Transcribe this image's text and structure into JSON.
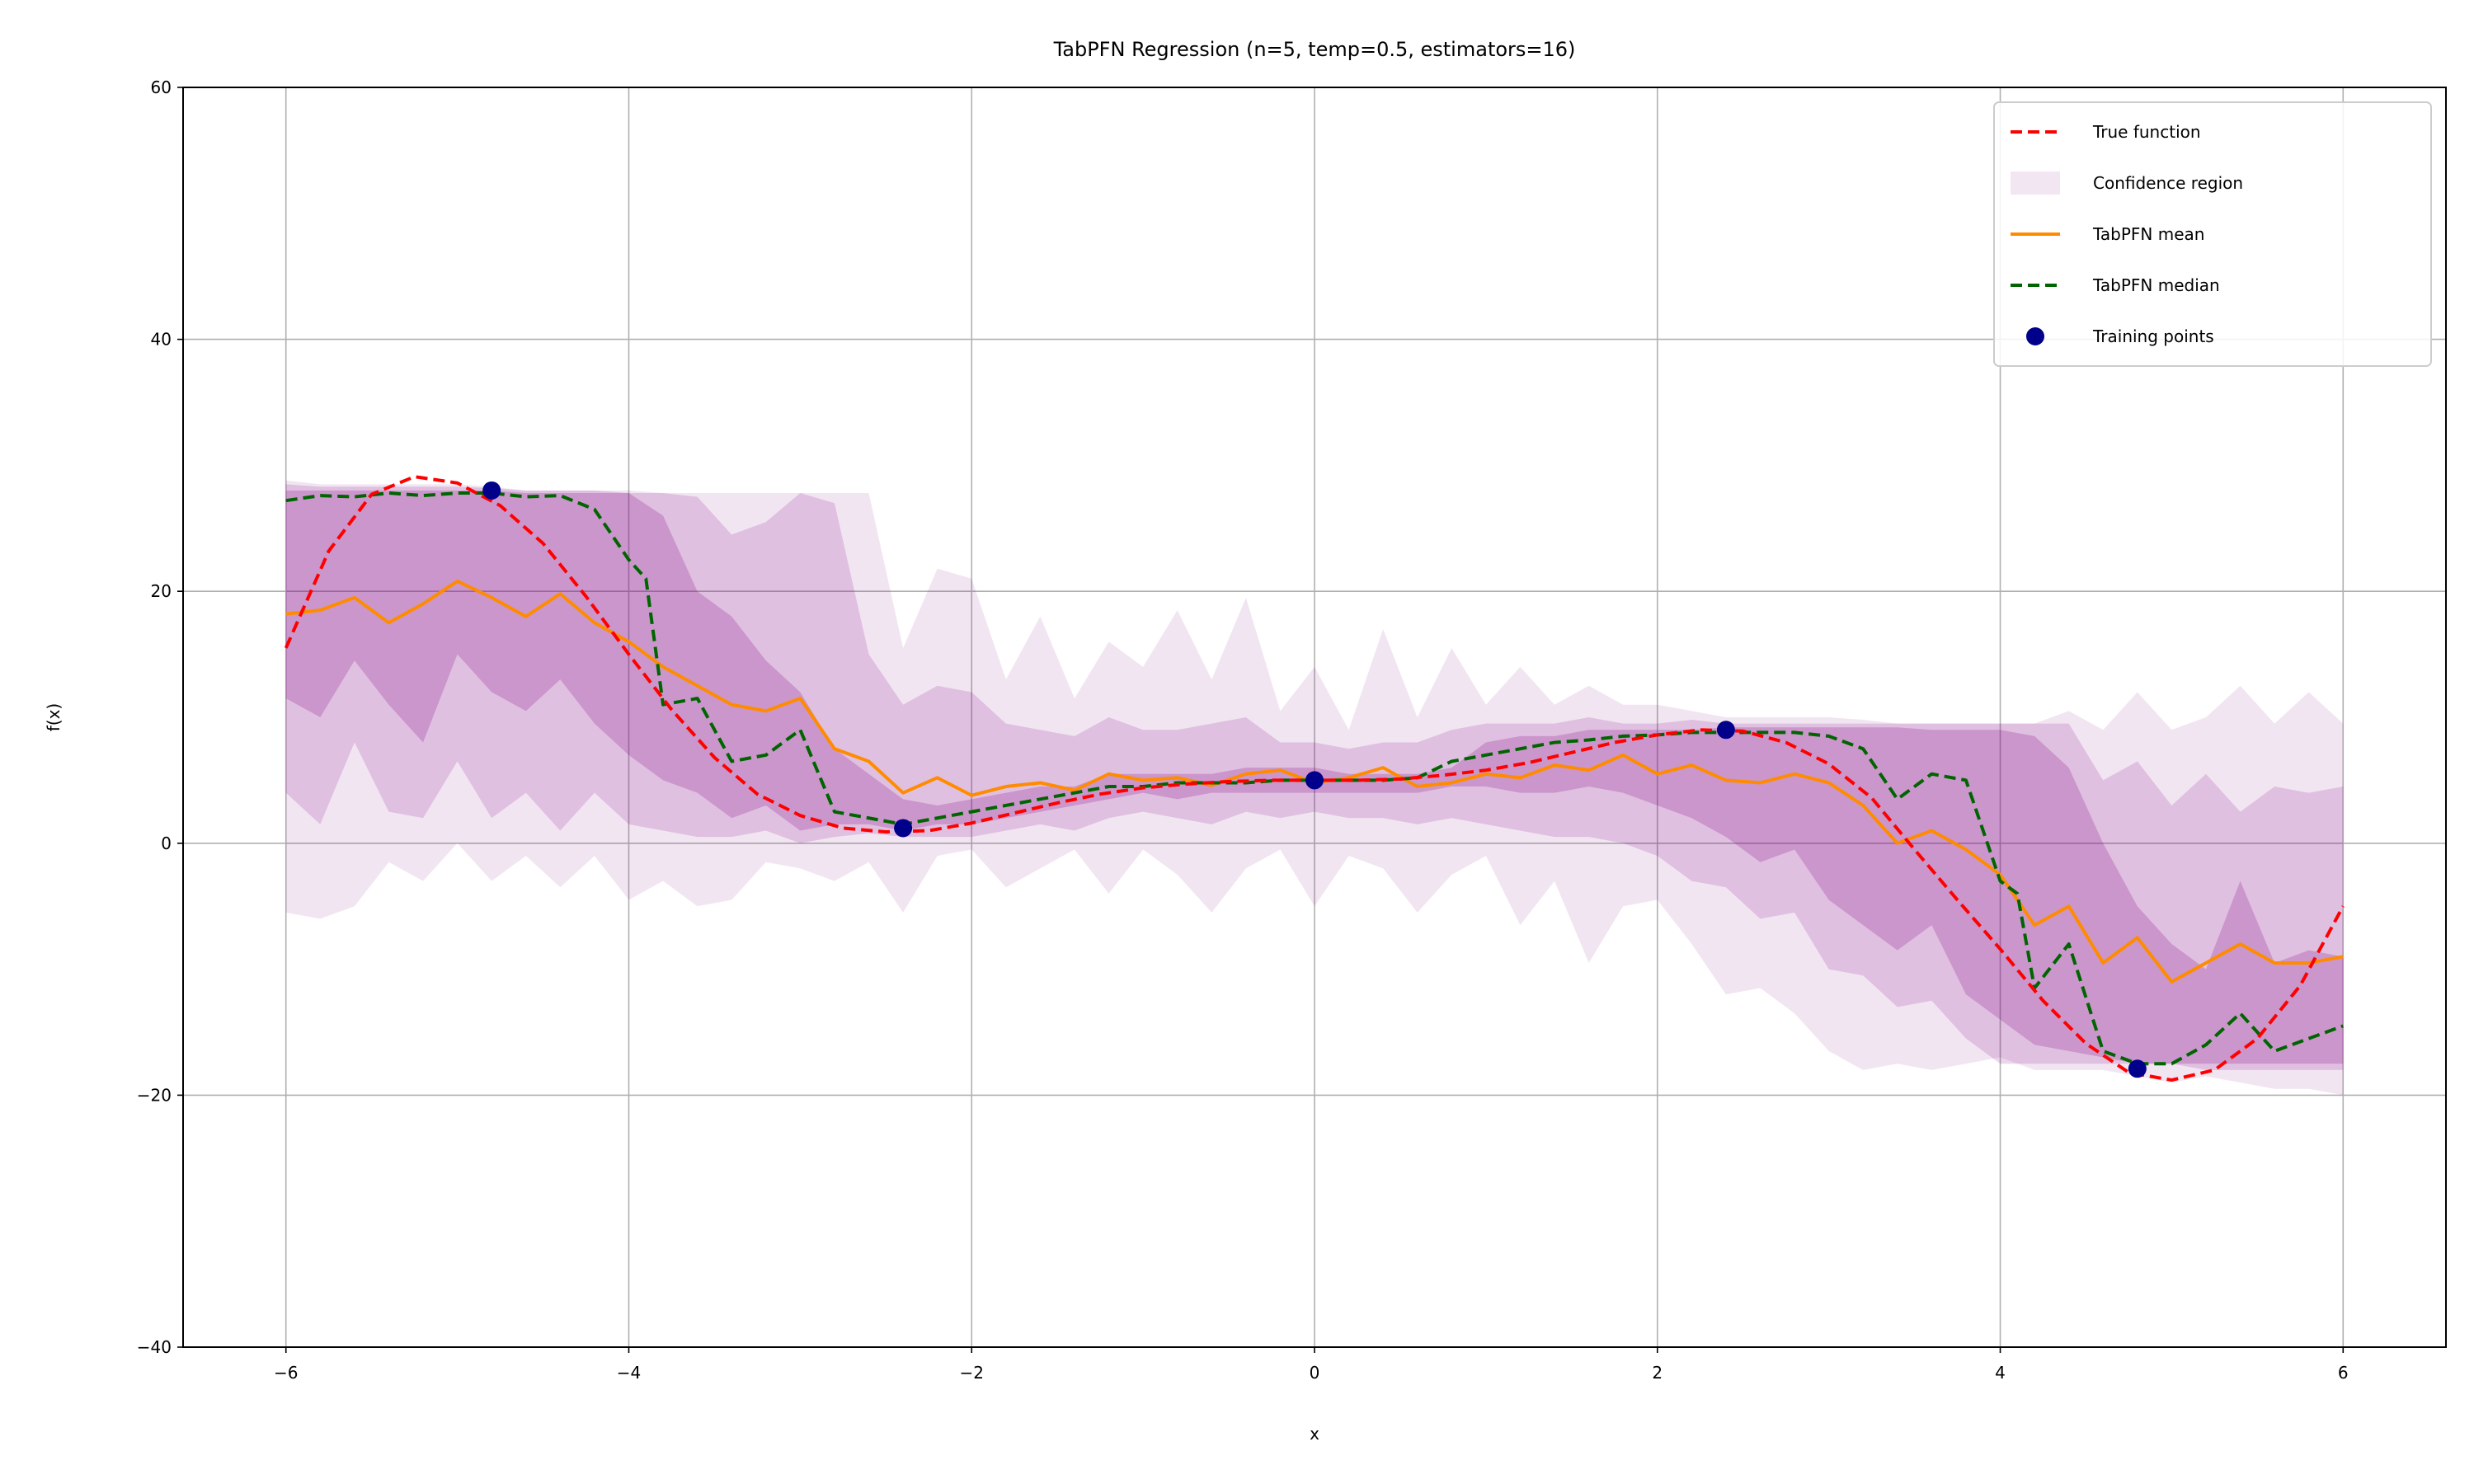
{
  "chart_data": {
    "type": "line",
    "title": "TabPFN Regression (n=5, temp=0.5, estimators=16)",
    "xlabel": "x",
    "ylabel": "f(x)",
    "xlim": [
      -6.6,
      6.6
    ],
    "ylim": [
      -40,
      60
    ],
    "xticks": [
      -6,
      -4,
      -2,
      0,
      2,
      4,
      6
    ],
    "xtick_labels": [
      "−6",
      "−4",
      "−2",
      "0",
      "2",
      "4",
      "6"
    ],
    "yticks": [
      -40,
      -20,
      0,
      20,
      40,
      60
    ],
    "ytick_labels": [
      "−40",
      "−20",
      "0",
      "20",
      "40",
      "60"
    ],
    "grid": true,
    "legend_position": "top-right",
    "legend": [
      {
        "label": "True function",
        "kind": "dashed-line",
        "color": "#ff0000"
      },
      {
        "label": "Confidence region",
        "kind": "patch",
        "color": "#f3e6f3"
      },
      {
        "label": "TabPFN mean",
        "kind": "line",
        "color": "#ff8c00"
      },
      {
        "label": "TabPFN median",
        "kind": "dashed-line",
        "color": "#006400"
      },
      {
        "label": "Training points",
        "kind": "marker",
        "color": "#00008b"
      }
    ],
    "colors": {
      "true_function": "#ff0000",
      "mean": "#ff8c00",
      "median": "#006400",
      "points": "#00008b",
      "band": "#800080"
    },
    "training_points": {
      "x": [
        -4.8,
        -2.4,
        0,
        2.4,
        4.8
      ],
      "y": [
        28,
        1.2,
        5,
        9,
        -17.9
      ]
    },
    "true_function_samples": {
      "x": [
        -6,
        -5.75,
        -5.5,
        -5.25,
        -5,
        -4.75,
        -4.5,
        -4.25,
        -4,
        -3.75,
        -3.5,
        -3.25,
        -3,
        -2.75,
        -2.5,
        -2.25,
        -2,
        -1.75,
        -1.5,
        -1.25,
        -1,
        -0.75,
        -0.5,
        -0.25,
        0,
        0.25,
        0.5,
        0.75,
        1,
        1.25,
        1.5,
        1.75,
        2,
        2.25,
        2.5,
        2.75,
        3,
        3.25,
        3.5,
        3.75,
        4,
        4.25,
        4.5,
        4.75,
        5,
        5.25,
        5.5,
        5.75,
        6
      ],
      "y": [
        15.5,
        23.2,
        27.7,
        29.1,
        28.6,
        26.8,
        23.8,
        19.6,
        15.0,
        10.6,
        6.8,
        3.9,
        2.2,
        1.2,
        0.9,
        1.0,
        1.6,
        2.4,
        3.2,
        3.9,
        4.4,
        4.7,
        4.9,
        5.0,
        5.0,
        5.0,
        5.1,
        5.4,
        5.8,
        6.4,
        7.2,
        8.0,
        8.6,
        9.0,
        8.9,
        8.0,
        6.3,
        3.6,
        -0.5,
        -4.5,
        -8.4,
        -12.5,
        -15.9,
        -18.2,
        -18.8,
        -18.0,
        -15.5,
        -11.3,
        -5.0
      ]
    },
    "series": [
      {
        "name": "TabPFN mean",
        "x": [
          -6,
          -5.8,
          -5.6,
          -5.4,
          -5.2,
          -5,
          -4.8,
          -4.6,
          -4.4,
          -4.2,
          -4,
          -3.8,
          -3.6,
          -3.4,
          -3.2,
          -3,
          -2.8,
          -2.6,
          -2.4,
          -2.2,
          -2,
          -1.8,
          -1.6,
          -1.4,
          -1.2,
          -1,
          -0.8,
          -0.6,
          -0.4,
          -0.2,
          0,
          0.2,
          0.4,
          0.6,
          0.8,
          1,
          1.2,
          1.4,
          1.6,
          1.8,
          2,
          2.2,
          2.4,
          2.6,
          2.8,
          3,
          3.2,
          3.4,
          3.6,
          3.8,
          4,
          4.2,
          4.4,
          4.6,
          4.8,
          5,
          5.2,
          5.4,
          5.6,
          5.8,
          6
        ],
        "y": [
          18.2,
          18.5,
          19.5,
          17.5,
          19.0,
          20.8,
          19.5,
          18.0,
          19.8,
          17.5,
          16.0,
          14.0,
          12.5,
          11.0,
          10.5,
          11.5,
          7.5,
          6.5,
          4.0,
          5.2,
          3.8,
          4.5,
          4.8,
          4.2,
          5.5,
          5.0,
          5.2,
          4.6,
          5.5,
          5.8,
          4.8,
          5.2,
          6.0,
          4.5,
          4.8,
          5.5,
          5.2,
          6.2,
          5.8,
          7.0,
          5.5,
          6.2,
          5.0,
          4.8,
          5.5,
          4.8,
          3.0,
          0.0,
          1.0,
          -0.5,
          -2.5,
          -6.5,
          -5.0,
          -9.5,
          -7.5,
          -11.0,
          -9.5,
          -8.0,
          -9.5,
          -9.5,
          -9.0
        ]
      },
      {
        "name": "TabPFN median",
        "x": [
          -6,
          -5.8,
          -5.6,
          -5.4,
          -5.2,
          -5,
          -4.8,
          -4.6,
          -4.4,
          -4.2,
          -4,
          -3.9,
          -3.8,
          -3.6,
          -3.4,
          -3.2,
          -3,
          -2.8,
          -2.6,
          -2.4,
          -2.2,
          -2,
          -1.8,
          -1.6,
          -1.4,
          -1.2,
          -1,
          -0.8,
          -0.6,
          -0.4,
          -0.2,
          0,
          0.2,
          0.4,
          0.6,
          0.8,
          1,
          1.2,
          1.4,
          1.6,
          1.8,
          2,
          2.2,
          2.4,
          2.6,
          2.8,
          3,
          3.2,
          3.4,
          3.6,
          3.8,
          4,
          4.1,
          4.2,
          4.4,
          4.6,
          4.8,
          5,
          5.2,
          5.4,
          5.6,
          5.8,
          6
        ],
        "y": [
          27.2,
          27.6,
          27.5,
          27.8,
          27.6,
          27.8,
          27.8,
          27.5,
          27.6,
          26.5,
          22.5,
          21.0,
          11.0,
          11.5,
          6.5,
          7.0,
          9.0,
          2.5,
          2.0,
          1.5,
          2.0,
          2.5,
          3.0,
          3.5,
          4.0,
          4.5,
          4.5,
          4.8,
          4.8,
          4.8,
          5.0,
          5.0,
          5.0,
          5.0,
          5.2,
          6.5,
          7.0,
          7.5,
          8.0,
          8.2,
          8.5,
          8.6,
          8.8,
          8.8,
          8.8,
          8.8,
          8.5,
          7.5,
          3.5,
          5.5,
          5.0,
          -3.0,
          -4.0,
          -11.5,
          -8.0,
          -16.5,
          -17.5,
          -17.5,
          -16.0,
          -13.5,
          -16.5,
          -15.5,
          -14.5
        ]
      }
    ],
    "confidence_bands": [
      {
        "level": "outer",
        "x": [
          -6,
          -5.8,
          -5.6,
          -5.4,
          -5.2,
          -5,
          -4.8,
          -4.6,
          -4.4,
          -4.2,
          -4,
          -3.8,
          -3.6,
          -3.4,
          -3.2,
          -3,
          -2.8,
          -2.6,
          -2.4,
          -2.2,
          -2,
          -1.8,
          -1.6,
          -1.4,
          -1.2,
          -1,
          -0.8,
          -0.6,
          -0.4,
          -0.2,
          0,
          0.2,
          0.4,
          0.6,
          0.8,
          1,
          1.2,
          1.4,
          1.6,
          1.8,
          2,
          2.2,
          2.4,
          2.6,
          2.8,
          3,
          3.2,
          3.4,
          3.6,
          3.8,
          4,
          4.2,
          4.4,
          4.6,
          4.8,
          5,
          5.2,
          5.4,
          5.6,
          5.8,
          6
        ],
        "lower": [
          -5.5,
          -6.0,
          -5.0,
          -1.5,
          -3.0,
          0.0,
          -3.0,
          -1.0,
          -3.5,
          -1.0,
          -4.5,
          -3.0,
          -5.0,
          -4.5,
          -1.5,
          -2.0,
          -3.0,
          -1.5,
          -5.5,
          -1.0,
          -0.5,
          -3.5,
          -2.0,
          -0.5,
          -4.0,
          -0.5,
          -2.5,
          -5.5,
          -2.0,
          -0.5,
          -5.0,
          -1.0,
          -2.0,
          -5.5,
          -2.5,
          -1.0,
          -6.5,
          -3.0,
          -9.5,
          -5.0,
          -4.5,
          -8.0,
          -12.0,
          -11.5,
          -13.5,
          -16.5,
          -18.0,
          -17.5,
          -18.0,
          -17.5,
          -17.0,
          -18.0,
          -18.0,
          -18.0,
          -18.5,
          -19.0,
          -18.5,
          -19.0,
          -19.5,
          -19.5,
          -20.0
        ],
        "upper": [
          28.8,
          28.5,
          28.5,
          28.5,
          28.5,
          28.5,
          28.3,
          28.0,
          28.0,
          28.0,
          28.0,
          27.8,
          27.8,
          27.8,
          27.8,
          27.8,
          27.8,
          27.8,
          15.5,
          21.8,
          21.0,
          13.0,
          18.0,
          11.5,
          16.0,
          14.0,
          18.5,
          13.0,
          19.5,
          10.5,
          14.0,
          9.0,
          17.0,
          10.0,
          15.5,
          11.0,
          14.0,
          11.0,
          12.5,
          11.0,
          11.0,
          10.5,
          10.0,
          10.0,
          10.0,
          10.0,
          9.8,
          9.5,
          9.5,
          9.5,
          9.5,
          9.5,
          10.5,
          9.0,
          12.0,
          9.0,
          10.0,
          12.5,
          9.5,
          12.0,
          9.5
        ]
      },
      {
        "level": "middle",
        "x": [
          -6,
          -5.8,
          -5.6,
          -5.4,
          -5.2,
          -5,
          -4.8,
          -4.6,
          -4.4,
          -4.2,
          -4,
          -3.8,
          -3.6,
          -3.4,
          -3.2,
          -3,
          -2.8,
          -2.6,
          -2.4,
          -2.2,
          -2,
          -1.8,
          -1.6,
          -1.4,
          -1.2,
          -1,
          -0.8,
          -0.6,
          -0.4,
          -0.2,
          0,
          0.2,
          0.4,
          0.6,
          0.8,
          1,
          1.2,
          1.4,
          1.6,
          1.8,
          2,
          2.2,
          2.4,
          2.6,
          2.8,
          3,
          3.2,
          3.4,
          3.6,
          3.8,
          4,
          4.2,
          4.4,
          4.6,
          4.8,
          5,
          5.2,
          5.4,
          5.6,
          5.8,
          6
        ],
        "lower": [
          4.0,
          1.5,
          8.0,
          2.5,
          2.0,
          6.5,
          2.0,
          4.0,
          1.0,
          4.0,
          1.5,
          1.0,
          0.5,
          0.5,
          1.0,
          0.0,
          0.5,
          0.8,
          0.5,
          0.5,
          0.5,
          1.0,
          1.5,
          1.0,
          2.0,
          2.5,
          2.0,
          1.5,
          2.5,
          2.0,
          2.5,
          2.0,
          2.0,
          1.5,
          2.0,
          1.5,
          1.0,
          0.5,
          0.5,
          0.0,
          -1.0,
          -3.0,
          -3.5,
          -6.0,
          -5.5,
          -10.0,
          -10.5,
          -13.0,
          -12.5,
          -15.5,
          -17.5,
          -17.5,
          -17.5,
          -17.5,
          -17.5,
          -17.5,
          -18.0,
          -18.0,
          -18.0,
          -18.0,
          -18.0
        ],
        "upper": [
          28.5,
          28.3,
          28.3,
          28.3,
          28.3,
          28.3,
          28.2,
          28.0,
          28.0,
          28.0,
          27.8,
          27.8,
          27.5,
          24.5,
          25.5,
          27.8,
          27.0,
          15.0,
          11.0,
          12.5,
          12.0,
          9.5,
          9.0,
          8.5,
          10.0,
          9.0,
          9.0,
          9.5,
          10.0,
          8.0,
          8.0,
          7.5,
          8.0,
          8.0,
          9.0,
          9.5,
          9.5,
          9.5,
          10.0,
          9.5,
          9.5,
          9.8,
          9.5,
          9.5,
          9.5,
          9.5,
          9.5,
          9.5,
          9.5,
          9.5,
          9.5,
          9.5,
          9.5,
          5.0,
          6.5,
          3.0,
          5.5,
          2.5,
          4.5,
          4.0,
          4.5
        ]
      },
      {
        "level": "inner",
        "x": [
          -6,
          -5.8,
          -5.6,
          -5.4,
          -5.2,
          -5,
          -4.8,
          -4.6,
          -4.4,
          -4.2,
          -4,
          -3.8,
          -3.6,
          -3.4,
          -3.2,
          -3,
          -2.8,
          -2.6,
          -2.4,
          -2.2,
          -2,
          -1.8,
          -1.6,
          -1.4,
          -1.2,
          -1,
          -0.8,
          -0.6,
          -0.4,
          -0.2,
          0,
          0.2,
          0.4,
          0.6,
          0.8,
          1,
          1.2,
          1.4,
          1.6,
          1.8,
          2,
          2.2,
          2.4,
          2.6,
          2.8,
          3,
          3.2,
          3.4,
          3.6,
          3.8,
          4,
          4.2,
          4.4,
          4.6,
          4.8,
          5,
          5.2,
          5.4,
          5.6,
          5.8,
          6
        ],
        "lower": [
          11.5,
          10.0,
          14.5,
          11.0,
          8.0,
          15.0,
          12.0,
          10.5,
          13.0,
          9.5,
          7.0,
          5.0,
          4.0,
          2.0,
          3.0,
          1.0,
          1.5,
          1.5,
          1.0,
          1.5,
          1.5,
          2.0,
          2.5,
          3.0,
          3.5,
          4.0,
          3.5,
          4.0,
          4.0,
          4.0,
          4.0,
          4.0,
          4.0,
          4.0,
          4.5,
          4.5,
          4.0,
          4.0,
          4.5,
          4.0,
          3.0,
          2.0,
          0.5,
          -1.5,
          -0.5,
          -4.5,
          -6.5,
          -8.5,
          -6.5,
          -12.0,
          -14.0,
          -16.0,
          -16.5,
          -17.0,
          -17.5,
          -17.5,
          -17.5,
          -17.5,
          -17.5,
          -17.5,
          -17.5
        ],
        "upper": [
          28.0,
          28.0,
          28.0,
          28.0,
          28.0,
          28.0,
          28.0,
          27.8,
          27.8,
          27.8,
          27.8,
          26.0,
          20.0,
          18.0,
          14.5,
          12.0,
          7.5,
          5.5,
          3.5,
          3.0,
          3.5,
          4.0,
          4.5,
          4.5,
          5.5,
          5.5,
          5.5,
          5.5,
          6.0,
          6.0,
          6.0,
          5.5,
          5.5,
          5.5,
          6.0,
          8.0,
          8.5,
          8.5,
          9.0,
          9.0,
          9.0,
          9.0,
          9.2,
          9.2,
          9.2,
          9.2,
          9.2,
          9.2,
          9.0,
          9.0,
          9.0,
          8.5,
          6.0,
          0.0,
          -5.0,
          -8.0,
          -10.0,
          -3.0,
          -9.5,
          -8.5,
          -9.0
        ]
      }
    ]
  }
}
